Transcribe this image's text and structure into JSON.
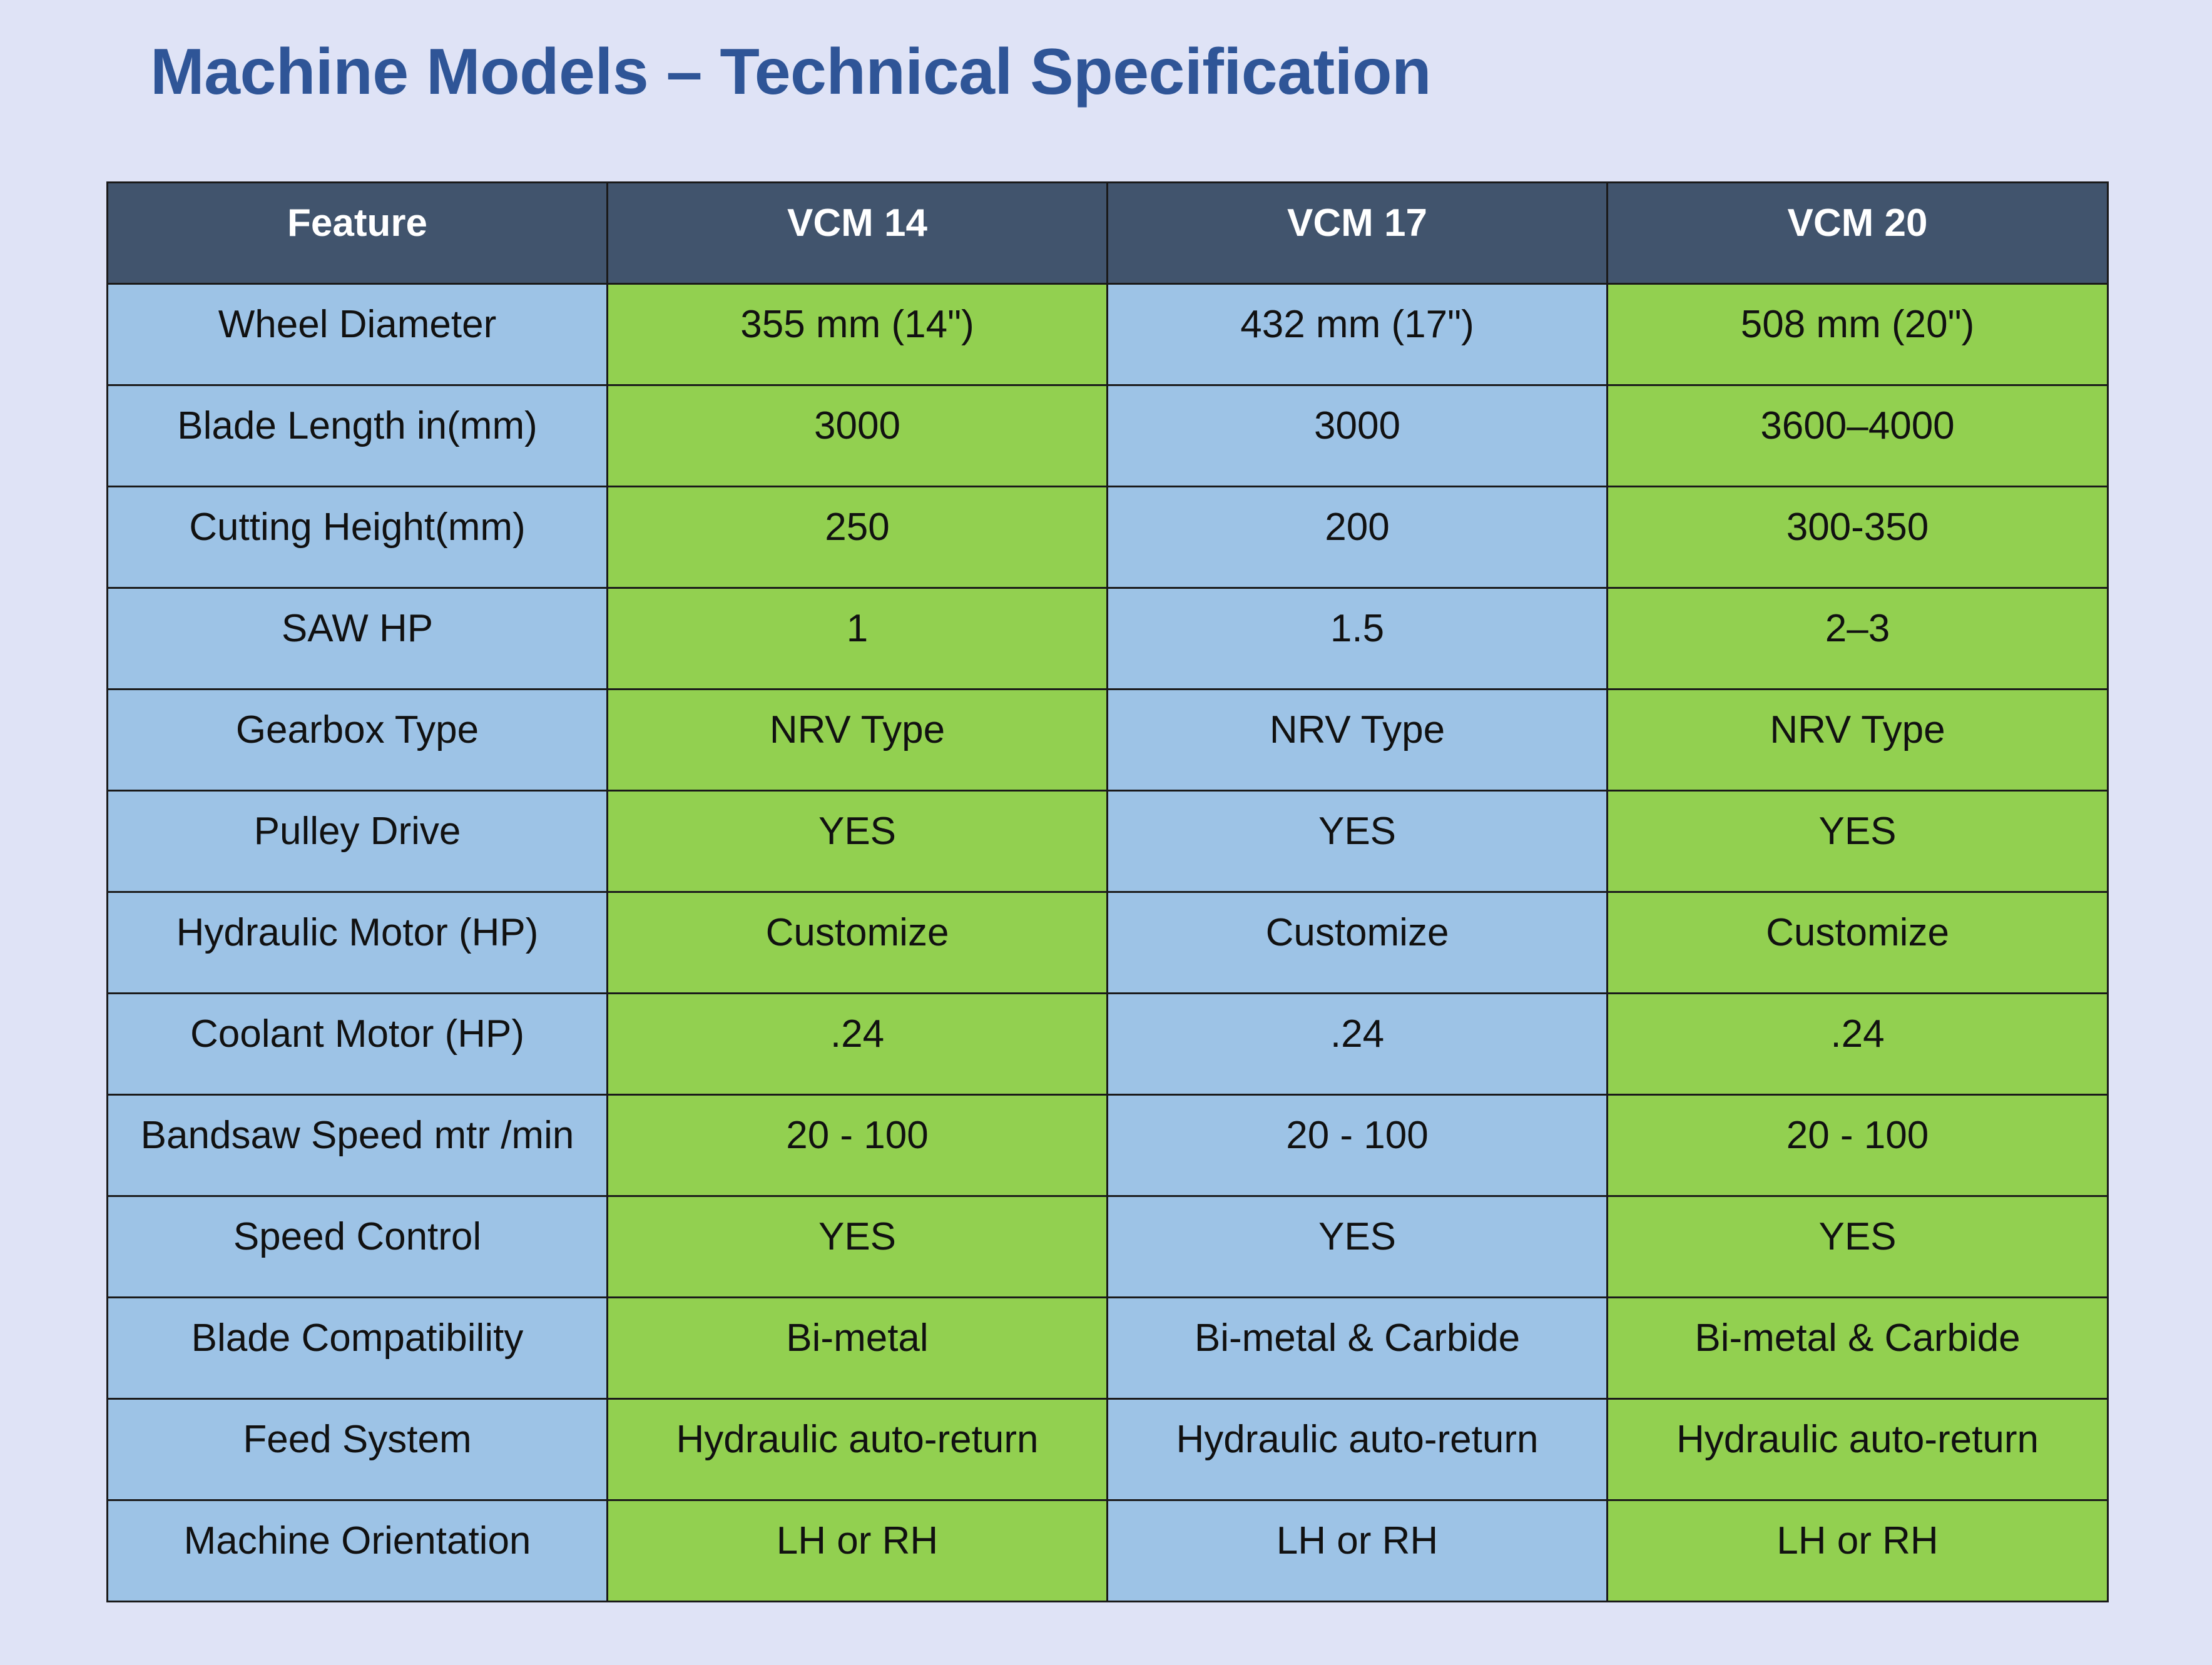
{
  "document": {
    "title": "Machine Models – Technical Specification"
  },
  "colors": {
    "page_background": "#dfe3f6",
    "title": "#2f5597",
    "header_background": "#41546d",
    "header_text": "#ffffff",
    "cell_blue": "#9dc3e6",
    "cell_green": "#92d050"
  },
  "table": {
    "headers": [
      "Feature",
      "VCM 14",
      "VCM 17",
      "VCM 20"
    ],
    "rows": [
      [
        "Wheel Diameter",
        "355 mm (14\")",
        "432 mm (17\")",
        "508 mm (20\")"
      ],
      [
        "Blade Length in(mm)",
        "3000",
        "3000",
        "3600–4000"
      ],
      [
        "Cutting Height(mm)",
        "250",
        "200",
        "300-350"
      ],
      [
        "SAW HP",
        "1",
        "1.5",
        "2–3"
      ],
      [
        "Gearbox Type",
        "NRV Type",
        "NRV Type",
        "NRV Type"
      ],
      [
        "Pulley Drive",
        "YES",
        "YES",
        "YES"
      ],
      [
        "Hydraulic Motor (HP)",
        "Customize",
        "Customize",
        "Customize"
      ],
      [
        "Coolant Motor (HP)",
        ".24",
        ".24",
        ".24"
      ],
      [
        "Bandsaw Speed mtr /min",
        "20 - 100",
        "20 - 100",
        "20 - 100"
      ],
      [
        "Speed Control",
        "YES",
        "YES",
        "YES"
      ],
      [
        "Blade Compatibility",
        "Bi-metal",
        "Bi-metal & Carbide",
        "Bi-metal & Carbide"
      ],
      [
        "Feed System",
        "Hydraulic auto-return",
        "Hydraulic auto-return",
        "Hydraulic auto-return"
      ],
      [
        "Machine Orientation",
        "LH or RH",
        "LH or RH",
        "LH or RH"
      ]
    ]
  }
}
